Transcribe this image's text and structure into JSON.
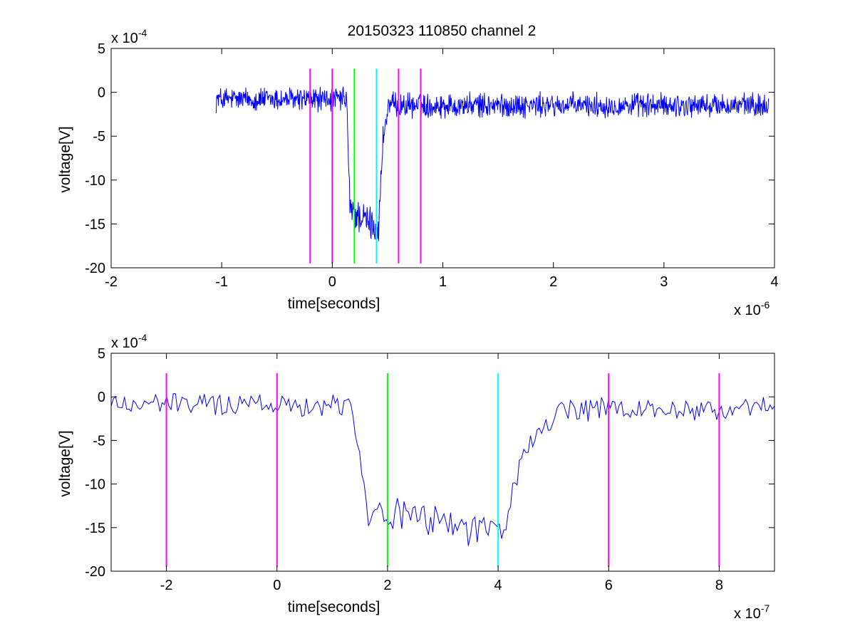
{
  "title": "20150323 110850 channel 2",
  "colors": {
    "trace": "#0000ff",
    "marker": "#ff00ff",
    "start": "#00ff00",
    "end": "#00ffff",
    "axis": "#000000"
  },
  "chart_data": [
    {
      "type": "line",
      "title": "20150323 110850 channel 2",
      "xlabel": "time[seconds]",
      "ylabel": "voltage[V]",
      "x_multiplier_label": "x 10",
      "x_multiplier_exp": "-6",
      "y_multiplier_label": "x 10",
      "y_multiplier_exp": "-4",
      "xlim": [
        -2,
        4
      ],
      "ylim": [
        -20,
        5
      ],
      "xticks": [
        "-2",
        "-1",
        "0",
        "1",
        "2",
        "3",
        "4"
      ],
      "yticks": [
        "5",
        "0",
        "-5",
        "-10",
        "-15",
        "-20"
      ],
      "grid": false,
      "trace_envelope": {
        "x_range": [
          -1.05,
          3.95
        ],
        "baseline": -0.8,
        "noise": 1.1,
        "step_points": [
          [
            0.13,
            -0.5
          ],
          [
            0.16,
            -13.5
          ],
          [
            0.42,
            -15.5
          ],
          [
            0.46,
            -5
          ],
          [
            0.5,
            -2.5
          ]
        ],
        "low_level": -14.5
      },
      "vlines": [
        {
          "x": -0.2,
          "color": "#ff00ff"
        },
        {
          "x": 0.0,
          "color": "#ff00ff"
        },
        {
          "x": 0.2,
          "color": "#00ff00"
        },
        {
          "x": 0.4,
          "color": "#00ffff"
        },
        {
          "x": 0.6,
          "color": "#ff00ff"
        },
        {
          "x": 0.8,
          "color": "#ff00ff"
        }
      ],
      "vline_range": [
        -19.5,
        2.7
      ]
    },
    {
      "type": "line",
      "title": "",
      "xlabel": "time[seconds]",
      "ylabel": "voltage[V]",
      "x_multiplier_label": "x 10",
      "x_multiplier_exp": "-7",
      "y_multiplier_label": "x 10",
      "y_multiplier_exp": "-4",
      "xlim": [
        -3,
        9
      ],
      "ylim": [
        -20,
        5
      ],
      "xticks": [
        "-2",
        "0",
        "2",
        "4",
        "6",
        "8"
      ],
      "yticks": [
        "5",
        "0",
        "-5",
        "-10",
        "-15",
        "-20"
      ],
      "grid": false,
      "trace_envelope": {
        "x_range": [
          -3,
          9
        ],
        "baseline": -0.8,
        "noise": 1.1,
        "step_points": [
          [
            1.35,
            -0.5
          ],
          [
            1.5,
            -7
          ],
          [
            1.65,
            -13
          ],
          [
            4.1,
            -15.5
          ],
          [
            4.3,
            -10
          ],
          [
            4.5,
            -6
          ],
          [
            5.0,
            -2.5
          ]
        ],
        "low_level": -14.5
      },
      "vlines": [
        {
          "x": -2,
          "color": "#ff00ff"
        },
        {
          "x": 0,
          "color": "#ff00ff"
        },
        {
          "x": 2,
          "color": "#00ff00"
        },
        {
          "x": 4,
          "color": "#00ffff"
        },
        {
          "x": 6,
          "color": "#ff00ff"
        },
        {
          "x": 8,
          "color": "#ff00ff"
        }
      ],
      "vline_range": [
        -19.5,
        2.7
      ]
    }
  ]
}
